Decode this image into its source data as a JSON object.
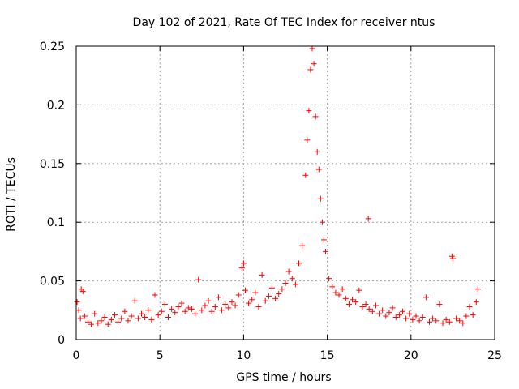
{
  "chart_data": {
    "type": "scatter",
    "title": "Day 102 of 2021, Rate Of TEC Index for receiver ntus",
    "xlabel": "GPS time / hours",
    "ylabel": "ROTI / TECUs",
    "xlim": [
      0,
      25
    ],
    "ylim": [
      0,
      0.25
    ],
    "x_ticks": [
      "0",
      "5",
      "10",
      "15",
      "20",
      "25"
    ],
    "y_ticks": [
      "0",
      "0.05",
      "0.1",
      "0.15",
      "0.2",
      "0.25"
    ],
    "grid": true,
    "marker": "plus",
    "color": "#ff0000",
    "series": [
      {
        "x": [
          0.05,
          0.15,
          0.25,
          0.3,
          0.4,
          0.5,
          0.7,
          0.9,
          1.1,
          1.3,
          1.5,
          1.7,
          1.9,
          2.1,
          2.3,
          2.5,
          2.7,
          2.9,
          3.1,
          3.3,
          3.5,
          3.7,
          3.9,
          4.1,
          4.3,
          4.5,
          4.7,
          4.9,
          5.1,
          5.3,
          5.5,
          5.7,
          5.9,
          6.1,
          6.3,
          6.5,
          6.7,
          6.9,
          7.1,
          7.3,
          7.5,
          7.7,
          7.9,
          8.1,
          8.3,
          8.5,
          8.7,
          8.9,
          9.1,
          9.3,
          9.5,
          9.7,
          9.9,
          10.0,
          10.1,
          10.3,
          10.5,
          10.7,
          10.9,
          11.1,
          11.3,
          11.5,
          11.7,
          11.9,
          12.1,
          12.3,
          12.5,
          12.7,
          12.9,
          13.1,
          13.3,
          13.5,
          13.7,
          13.8,
          13.9,
          14.0,
          14.1,
          14.2,
          14.3,
          14.4,
          14.5,
          14.6,
          14.7,
          14.8,
          14.9,
          15.1,
          15.3,
          15.5,
          15.7,
          15.9,
          16.1,
          16.3,
          16.5,
          16.7,
          16.9,
          17.1,
          17.3,
          17.45,
          17.5,
          17.7,
          17.9,
          18.1,
          18.3,
          18.5,
          18.7,
          18.9,
          19.1,
          19.3,
          19.5,
          19.7,
          19.9,
          20.1,
          20.3,
          20.5,
          20.7,
          20.9,
          21.1,
          21.3,
          21.5,
          21.7,
          21.9,
          22.1,
          22.3,
          22.45,
          22.5,
          22.7,
          22.9,
          23.1,
          23.3,
          23.5,
          23.7,
          23.9,
          24.0
        ],
        "y": [
          0.032,
          0.025,
          0.018,
          0.043,
          0.041,
          0.02,
          0.015,
          0.013,
          0.022,
          0.014,
          0.016,
          0.019,
          0.013,
          0.017,
          0.021,
          0.015,
          0.018,
          0.024,
          0.016,
          0.02,
          0.033,
          0.018,
          0.022,
          0.019,
          0.025,
          0.017,
          0.038,
          0.021,
          0.024,
          0.03,
          0.019,
          0.026,
          0.023,
          0.028,
          0.031,
          0.024,
          0.027,
          0.026,
          0.022,
          0.051,
          0.025,
          0.029,
          0.033,
          0.024,
          0.028,
          0.036,
          0.025,
          0.03,
          0.027,
          0.032,
          0.029,
          0.038,
          0.061,
          0.065,
          0.042,
          0.031,
          0.034,
          0.04,
          0.028,
          0.055,
          0.033,
          0.037,
          0.044,
          0.035,
          0.039,
          0.043,
          0.048,
          0.058,
          0.052,
          0.047,
          0.065,
          0.08,
          0.14,
          0.17,
          0.195,
          0.23,
          0.248,
          0.235,
          0.19,
          0.16,
          0.145,
          0.12,
          0.1,
          0.085,
          0.075,
          0.052,
          0.045,
          0.04,
          0.038,
          0.043,
          0.035,
          0.03,
          0.034,
          0.032,
          0.042,
          0.028,
          0.03,
          0.103,
          0.026,
          0.024,
          0.029,
          0.022,
          0.025,
          0.02,
          0.023,
          0.027,
          0.019,
          0.021,
          0.024,
          0.018,
          0.022,
          0.017,
          0.02,
          0.016,
          0.019,
          0.036,
          0.015,
          0.018,
          0.016,
          0.03,
          0.014,
          0.017,
          0.015,
          0.071,
          0.069,
          0.018,
          0.016,
          0.014,
          0.02,
          0.028,
          0.021,
          0.032,
          0.043
        ]
      }
    ]
  }
}
